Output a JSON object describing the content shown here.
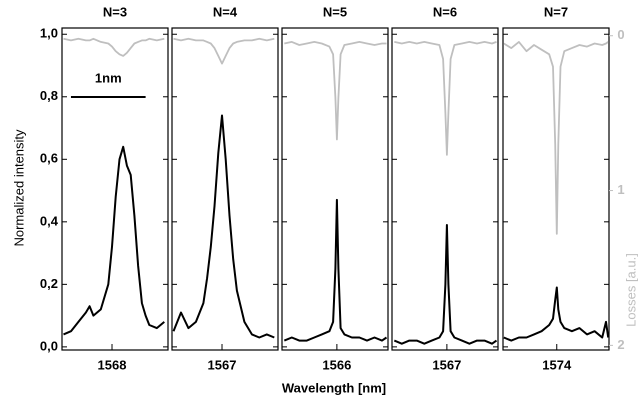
{
  "chart_data": [
    {
      "type": "line",
      "title": "N=3",
      "ylabel": "Normalized intensity",
      "scale_bar": {
        "label": "1nm",
        "start": 1567.45,
        "end": 1568.45
      },
      "xlim": [
        1567.33,
        1568.75
      ],
      "xticks": [
        1568
      ],
      "ylim": [
        -0.01,
        1.02
      ],
      "yticks": [
        {
          "value": 0,
          "label": "0,0"
        },
        {
          "value": 0.2,
          "label": "0,2"
        },
        {
          "value": 0.4,
          "label": "0,4"
        },
        {
          "value": 0.6,
          "label": "0,6"
        },
        {
          "value": 0.8,
          "label": "0,8"
        },
        {
          "value": 1,
          "label": "1,0"
        }
      ],
      "y2lim": [
        2.03,
        -0.05
      ],
      "x": [
        1567.35,
        1567.45,
        1567.55,
        1567.65,
        1567.7,
        1567.75,
        1567.85,
        1567.95,
        1568.0,
        1568.05,
        1568.1,
        1568.15,
        1568.2,
        1568.25,
        1568.3,
        1568.35,
        1568.4,
        1568.45,
        1568.5,
        1568.6,
        1568.7
      ],
      "series": [
        {
          "color": "#000000",
          "values": [
            0.04,
            0.05,
            0.08,
            0.11,
            0.13,
            0.1,
            0.12,
            0.2,
            0.32,
            0.48,
            0.6,
            0.64,
            0.58,
            0.55,
            0.42,
            0.26,
            0.14,
            0.1,
            0.07,
            0.06,
            0.08
          ]
        },
        {
          "color": "#bfbfbf",
          "axis": "y2",
          "values": [
            0.02,
            0.03,
            0.02,
            0.03,
            0.03,
            0.02,
            0.04,
            0.05,
            0.07,
            0.1,
            0.12,
            0.13,
            0.11,
            0.08,
            0.05,
            0.04,
            0.03,
            0.03,
            0.02,
            0.03,
            0.02
          ]
        }
      ]
    },
    {
      "type": "line",
      "title": "N=4",
      "xlim": [
        1566.33,
        1567.75
      ],
      "xticks": [
        1567
      ],
      "ylim": [
        -0.01,
        1.02
      ],
      "y2lim": [
        2.03,
        -0.05
      ],
      "x": [
        1566.35,
        1566.45,
        1566.55,
        1566.65,
        1566.75,
        1566.8,
        1566.85,
        1566.9,
        1566.95,
        1567.0,
        1567.05,
        1567.1,
        1567.15,
        1567.2,
        1567.3,
        1567.4,
        1567.5,
        1567.6,
        1567.7
      ],
      "series": [
        {
          "color": "#000000",
          "values": [
            0.05,
            0.11,
            0.06,
            0.08,
            0.14,
            0.22,
            0.32,
            0.45,
            0.62,
            0.74,
            0.6,
            0.42,
            0.28,
            0.18,
            0.08,
            0.04,
            0.03,
            0.04,
            0.03
          ]
        },
        {
          "color": "#bfbfbf",
          "axis": "y2",
          "values": [
            0.02,
            0.03,
            0.02,
            0.03,
            0.03,
            0.04,
            0.05,
            0.08,
            0.13,
            0.18,
            0.13,
            0.08,
            0.05,
            0.04,
            0.03,
            0.03,
            0.02,
            0.03,
            0.02
          ]
        }
      ]
    },
    {
      "type": "line",
      "title": "N=5",
      "xlabel": "Wavelength [nm]",
      "xlim": [
        1565.27,
        1566.68
      ],
      "xticks": [
        1566
      ],
      "ylim": [
        -0.01,
        1.02
      ],
      "y2lim": [
        2.03,
        -0.05
      ],
      "x": [
        1565.3,
        1565.4,
        1565.5,
        1565.6,
        1565.7,
        1565.8,
        1565.9,
        1565.95,
        1565.98,
        1566.0,
        1566.02,
        1566.05,
        1566.1,
        1566.2,
        1566.3,
        1566.4,
        1566.5,
        1566.6,
        1566.66
      ],
      "series": [
        {
          "color": "#000000",
          "values": [
            0.02,
            0.03,
            0.02,
            0.02,
            0.03,
            0.04,
            0.05,
            0.08,
            0.25,
            0.47,
            0.25,
            0.06,
            0.04,
            0.03,
            0.03,
            0.02,
            0.03,
            0.02,
            0.03
          ]
        },
        {
          "color": "#bfbfbf",
          "axis": "y2",
          "values": [
            0.05,
            0.04,
            0.06,
            0.05,
            0.04,
            0.05,
            0.07,
            0.12,
            0.4,
            0.67,
            0.4,
            0.12,
            0.06,
            0.05,
            0.04,
            0.05,
            0.06,
            0.05,
            0.05
          ]
        }
      ]
    },
    {
      "type": "line",
      "title": "N=6",
      "xlim": [
        1566.27,
        1567.68
      ],
      "xticks": [
        1567
      ],
      "ylim": [
        -0.01,
        1.02
      ],
      "y2lim": [
        2.03,
        -0.05
      ],
      "x": [
        1566.3,
        1566.4,
        1566.5,
        1566.6,
        1566.7,
        1566.8,
        1566.9,
        1566.95,
        1566.98,
        1567.0,
        1567.02,
        1567.05,
        1567.1,
        1567.2,
        1567.3,
        1567.4,
        1567.5,
        1567.6,
        1567.66
      ],
      "series": [
        {
          "color": "#000000",
          "values": [
            0.02,
            0.01,
            0.02,
            0.02,
            0.01,
            0.02,
            0.03,
            0.05,
            0.2,
            0.39,
            0.2,
            0.05,
            0.03,
            0.02,
            0.01,
            0.02,
            0.02,
            0.01,
            0.02
          ]
        },
        {
          "color": "#bfbfbf",
          "axis": "y2",
          "values": [
            0.04,
            0.05,
            0.04,
            0.05,
            0.04,
            0.05,
            0.06,
            0.15,
            0.5,
            0.77,
            0.5,
            0.15,
            0.06,
            0.05,
            0.04,
            0.05,
            0.04,
            0.05,
            0.04
          ]
        }
      ]
    },
    {
      "type": "line",
      "title": "N=7",
      "y2label": "Losses [a.u.]",
      "xlim": [
        1573.29,
        1574.69
      ],
      "xticks": [
        1574
      ],
      "ylim": [
        -0.01,
        1.02
      ],
      "y2lim": [
        2.03,
        -0.05
      ],
      "y2ticks": [
        0,
        1,
        2
      ],
      "x": [
        1573.3,
        1573.4,
        1573.5,
        1573.6,
        1573.7,
        1573.8,
        1573.9,
        1573.95,
        1573.98,
        1574.0,
        1574.02,
        1574.05,
        1574.1,
        1574.2,
        1574.3,
        1574.4,
        1574.5,
        1574.6,
        1574.65,
        1574.68
      ],
      "series": [
        {
          "color": "#000000",
          "values": [
            0.03,
            0.02,
            0.03,
            0.03,
            0.04,
            0.05,
            0.07,
            0.09,
            0.15,
            0.19,
            0.12,
            0.08,
            0.06,
            0.05,
            0.06,
            0.04,
            0.05,
            0.03,
            0.08,
            0.03
          ]
        },
        {
          "color": "#bfbfbf",
          "axis": "y2",
          "values": [
            0.05,
            0.08,
            0.04,
            0.1,
            0.06,
            0.09,
            0.12,
            0.2,
            0.7,
            1.28,
            0.7,
            0.2,
            0.1,
            0.08,
            0.06,
            0.07,
            0.05,
            0.06,
            0.05,
            0.04
          ]
        }
      ]
    }
  ]
}
